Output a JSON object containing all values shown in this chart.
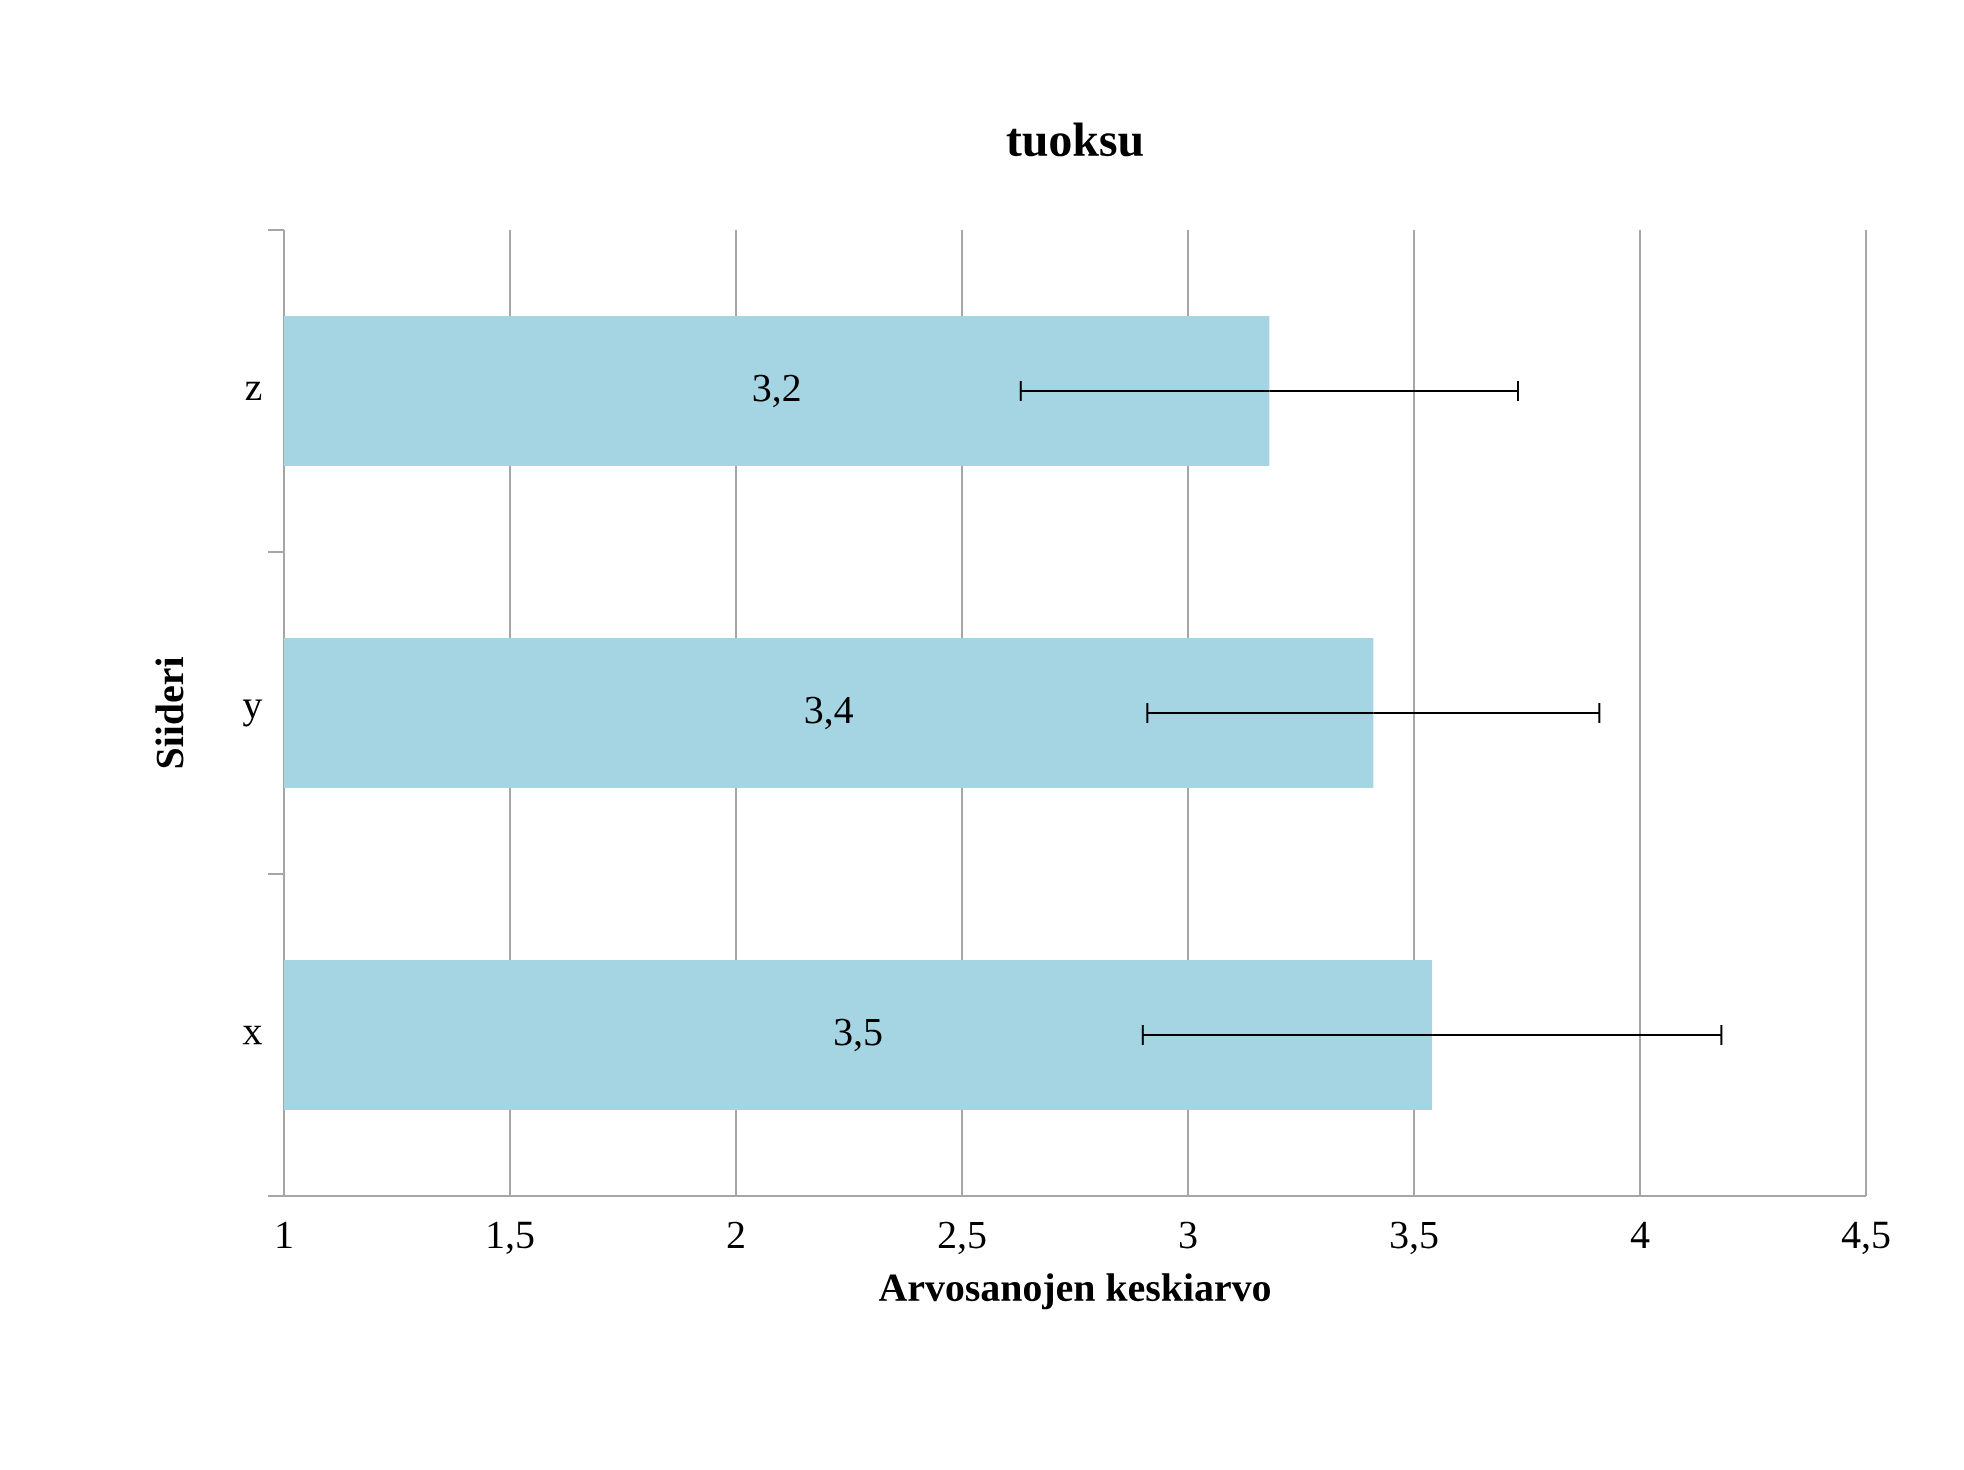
{
  "chart_data": {
    "type": "bar",
    "orientation": "horizontal",
    "title": "tuoksu",
    "xlabel": "Arvosanojen keskiarvo",
    "ylabel": "Siideri",
    "categories": [
      "z",
      "y",
      "x"
    ],
    "values": [
      3.18,
      3.41,
      3.54
    ],
    "errors": [
      0.55,
      0.5,
      0.64
    ],
    "value_labels": [
      "3,2",
      "3,4",
      "3,5"
    ],
    "color": "#a5d5e3",
    "xlim": [
      1,
      4.5
    ],
    "xticks": [
      1,
      {
        "value": 1.5,
        "label": "1,5"
      },
      2,
      {
        "value": 2.5,
        "label": "2,5"
      },
      3,
      {
        "value": 3.5,
        "label": "3,5"
      },
      4,
      {
        "value": 4.5,
        "label": "4,5"
      }
    ],
    "grid": "x"
  }
}
